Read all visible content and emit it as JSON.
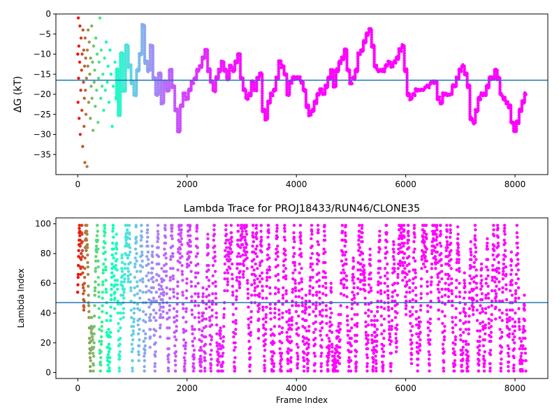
{
  "chart_data": [
    {
      "type": "scatter",
      "title": "",
      "xlabel": "",
      "ylabel": "ΔG (kT)",
      "xlim": [
        -400,
        8600
      ],
      "ylim": [
        -40,
        0
      ],
      "xticks": [
        0,
        2000,
        4000,
        6000,
        8000
      ],
      "yticks": [
        0,
        -5,
        -10,
        -15,
        -20,
        -25,
        -30,
        -35
      ],
      "grid": false,
      "colormap": "rainbow",
      "hline": {
        "y": -16.5,
        "color": "#1f77b4"
      },
      "series": [
        {
          "points": [
            [
              0,
              -10
            ],
            [
              5,
              -22
            ],
            [
              10,
              -1
            ],
            [
              15,
              -16
            ],
            [
              20,
              -8
            ],
            [
              25,
              -26
            ],
            [
              35,
              -12
            ],
            [
              40,
              -3
            ],
            [
              45,
              -30
            ],
            [
              55,
              -19
            ],
            [
              60,
              -6
            ],
            [
              70,
              -14
            ],
            [
              75,
              -24
            ],
            [
              80,
              -10
            ],
            [
              90,
              -33
            ],
            [
              95,
              -4
            ],
            [
              105,
              -17
            ],
            [
              110,
              -9
            ],
            [
              115,
              -28
            ],
            [
              120,
              -21
            ],
            [
              125,
              -13
            ],
            [
              130,
              -37
            ],
            [
              135,
              -6
            ],
            [
              140,
              -19
            ],
            [
              145,
              -11
            ],
            [
              150,
              -25
            ],
            [
              160,
              -16
            ],
            [
              170,
              -38
            ],
            [
              175,
              -9
            ],
            [
              185,
              -13
            ],
            [
              190,
              -4
            ],
            [
              200,
              -22
            ],
            [
              210,
              -7
            ],
            [
              220,
              -15
            ],
            [
              230,
              -26
            ],
            [
              235,
              -11
            ],
            [
              245,
              -18
            ],
            [
              255,
              -3
            ],
            [
              260,
              -21
            ],
            [
              270,
              -12
            ],
            [
              280,
              -29
            ],
            [
              290,
              -8
            ],
            [
              300,
              -17
            ],
            [
              310,
              -14
            ],
            [
              320,
              -23
            ],
            [
              330,
              -6
            ],
            [
              345,
              -19
            ],
            [
              355,
              -10
            ],
            [
              370,
              -27
            ],
            [
              380,
              -16
            ],
            [
              390,
              -12
            ],
            [
              405,
              -1
            ],
            [
              420,
              -21
            ],
            [
              430,
              -9
            ],
            [
              445,
              -18
            ],
            [
              460,
              -15
            ],
            [
              475,
              -24
            ],
            [
              490,
              -11
            ],
            [
              505,
              -19
            ],
            [
              520,
              -7
            ],
            [
              540,
              -17
            ],
            [
              555,
              -13
            ],
            [
              570,
              -22
            ],
            [
              590,
              -9
            ],
            [
              610,
              -15
            ],
            [
              630,
              -28
            ],
            [
              650,
              -18
            ],
            [
              680,
              -12
            ],
            [
              700,
              -21
            ],
            [
              720,
              -14
            ],
            [
              760,
              -25
            ],
            [
              800,
              -10
            ],
            [
              850,
              -19
            ],
            [
              900,
              -8
            ],
            [
              950,
              -13
            ],
            [
              1000,
              -17
            ],
            [
              1050,
              -20
            ],
            [
              1100,
              -14
            ],
            [
              1150,
              -10
            ],
            [
              1200,
              -3
            ],
            [
              1250,
              -12
            ],
            [
              1300,
              -14
            ],
            [
              1350,
              -8
            ],
            [
              1400,
              -16
            ],
            [
              1450,
              -20
            ],
            [
              1500,
              -15
            ],
            [
              1550,
              -22
            ],
            [
              1600,
              -17
            ],
            [
              1650,
              -19
            ],
            [
              1700,
              -14
            ],
            [
              1750,
              -18
            ],
            [
              1800,
              -24
            ],
            [
              1850,
              -29
            ],
            [
              1900,
              -23
            ],
            [
              1950,
              -20
            ],
            [
              2000,
              -21
            ],
            [
              2050,
              -19
            ],
            [
              2100,
              -17
            ],
            [
              2150,
              -16
            ],
            [
              2200,
              -14
            ],
            [
              2250,
              -13
            ],
            [
              2300,
              -11
            ],
            [
              2350,
              -9
            ],
            [
              2400,
              -14
            ],
            [
              2450,
              -17
            ],
            [
              2500,
              -19
            ],
            [
              2550,
              -16
            ],
            [
              2600,
              -14
            ],
            [
              2650,
              -12
            ],
            [
              2700,
              -14
            ],
            [
              2750,
              -16
            ],
            [
              2800,
              -13
            ],
            [
              2850,
              -14
            ],
            [
              2900,
              -12
            ],
            [
              2950,
              -10
            ],
            [
              3000,
              -16
            ],
            [
              3050,
              -19
            ],
            [
              3100,
              -21
            ],
            [
              3150,
              -20
            ],
            [
              3200,
              -17
            ],
            [
              3250,
              -19
            ],
            [
              3300,
              -16
            ],
            [
              3350,
              -15
            ],
            [
              3400,
              -24
            ],
            [
              3450,
              -26
            ],
            [
              3500,
              -22
            ],
            [
              3550,
              -20
            ],
            [
              3600,
              -19
            ],
            [
              3650,
              -16
            ],
            [
              3700,
              -12
            ],
            [
              3750,
              -13
            ],
            [
              3800,
              -15
            ],
            [
              3850,
              -20
            ],
            [
              3900,
              -17
            ],
            [
              3950,
              -16
            ],
            [
              4000,
              -16
            ],
            [
              4050,
              -16
            ],
            [
              4100,
              -17
            ],
            [
              4150,
              -19
            ],
            [
              4200,
              -23
            ],
            [
              4250,
              -25
            ],
            [
              4300,
              -24
            ],
            [
              4350,
              -22
            ],
            [
              4400,
              -20
            ],
            [
              4450,
              -19
            ],
            [
              4500,
              -20
            ],
            [
              4550,
              -18
            ],
            [
              4600,
              -16
            ],
            [
              4650,
              -14
            ],
            [
              4700,
              -18
            ],
            [
              4750,
              -14
            ],
            [
              4800,
              -12
            ],
            [
              4850,
              -11
            ],
            [
              4900,
              -9
            ],
            [
              4950,
              -14
            ],
            [
              5000,
              -17
            ],
            [
              5050,
              -16
            ],
            [
              5100,
              -14
            ],
            [
              5150,
              -10
            ],
            [
              5200,
              -9
            ],
            [
              5250,
              -7
            ],
            [
              5300,
              -5
            ],
            [
              5350,
              -4
            ],
            [
              5400,
              -8
            ],
            [
              5450,
              -13
            ],
            [
              5500,
              -14
            ],
            [
              5550,
              -14
            ],
            [
              5600,
              -14
            ],
            [
              5650,
              -13
            ],
            [
              5700,
              -12
            ],
            [
              5750,
              -13
            ],
            [
              5800,
              -12
            ],
            [
              5850,
              -11
            ],
            [
              5900,
              -9
            ],
            [
              5950,
              -8
            ],
            [
              6000,
              -14
            ],
            [
              6050,
              -20
            ],
            [
              6100,
              -21
            ],
            [
              6150,
              -20
            ],
            [
              6200,
              -19
            ],
            [
              6300,
              -19
            ],
            [
              6400,
              -18
            ],
            [
              6500,
              -17
            ],
            [
              6550,
              -17
            ],
            [
              6600,
              -21
            ],
            [
              6650,
              -22
            ],
            [
              6700,
              -20
            ],
            [
              6800,
              -20
            ],
            [
              6900,
              -18
            ],
            [
              6950,
              -16
            ],
            [
              7000,
              -14
            ],
            [
              7050,
              -13
            ],
            [
              7100,
              -15
            ],
            [
              7150,
              -18
            ],
            [
              7200,
              -26
            ],
            [
              7250,
              -27
            ],
            [
              7300,
              -24
            ],
            [
              7350,
              -21
            ],
            [
              7400,
              -20
            ],
            [
              7450,
              -20
            ],
            [
              7500,
              -18
            ],
            [
              7550,
              -16
            ],
            [
              7600,
              -16
            ],
            [
              7650,
              -14
            ],
            [
              7700,
              -16
            ],
            [
              7750,
              -20
            ],
            [
              7800,
              -21
            ],
            [
              7850,
              -22
            ],
            [
              7900,
              -23
            ],
            [
              7950,
              -27
            ],
            [
              8000,
              -29
            ],
            [
              8050,
              -27
            ],
            [
              8100,
              -24
            ],
            [
              8150,
              -22
            ],
            [
              8200,
              -20
            ]
          ]
        }
      ]
    },
    {
      "type": "scatter",
      "title": "Lambda Trace for PROJ18433/RUN46/CLONE35",
      "xlabel": "Frame Index",
      "ylabel": "Lambda Index",
      "xlim": [
        -400,
        8600
      ],
      "ylim": [
        -4,
        104
      ],
      "xticks": [
        0,
        2000,
        4000,
        6000,
        8000
      ],
      "yticks": [
        0,
        20,
        40,
        60,
        80,
        100
      ],
      "grid": false,
      "colormap": "rainbow",
      "hline": {
        "y": 47,
        "color": "#1f77b4"
      },
      "x_range": [
        0,
        8200
      ],
      "y_range": [
        0,
        99
      ]
    }
  ]
}
